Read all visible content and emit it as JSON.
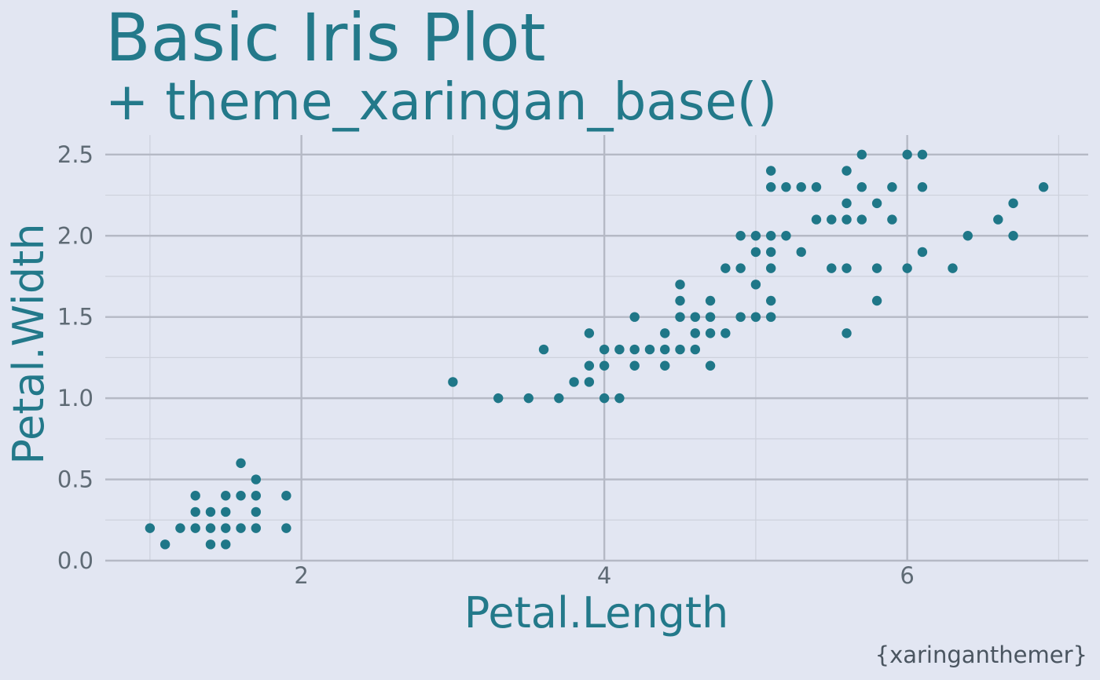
{
  "chart_data": {
    "type": "scatter",
    "title": "Basic Iris Plot",
    "subtitle": "+ theme_xaringan_base()",
    "caption": "{xaringanthemer}",
    "xlabel": "Petal.Length",
    "ylabel": "Petal.Width",
    "xlim": [
      0.705,
      7.195
    ],
    "ylim": [
      0.0,
      2.62
    ],
    "x_ticks": [
      2,
      4,
      6
    ],
    "x_tick_labels": [
      "2",
      "4",
      "6"
    ],
    "x_minor_ticks": [
      1,
      3,
      5,
      7
    ],
    "y_ticks": [
      0.0,
      0.5,
      1.0,
      1.5,
      2.0,
      2.5
    ],
    "y_tick_labels": [
      "0.0",
      "0.5",
      "1.0",
      "1.5",
      "2.0",
      "2.5"
    ],
    "y_minor_ticks": [
      0.25,
      0.75,
      1.25,
      1.75,
      2.25
    ],
    "grid": true,
    "point_color": "#1F7788",
    "text_color": "#23798A",
    "background": "#E2E6F2",
    "points": [
      [
        1.0,
        0.2
      ],
      [
        1.1,
        0.1
      ],
      [
        1.2,
        0.2
      ],
      [
        1.3,
        0.2
      ],
      [
        1.3,
        0.3
      ],
      [
        1.3,
        0.4
      ],
      [
        1.4,
        0.1
      ],
      [
        1.4,
        0.2
      ],
      [
        1.4,
        0.3
      ],
      [
        1.5,
        0.1
      ],
      [
        1.5,
        0.2
      ],
      [
        1.5,
        0.3
      ],
      [
        1.5,
        0.4
      ],
      [
        1.6,
        0.2
      ],
      [
        1.6,
        0.4
      ],
      [
        1.6,
        0.6
      ],
      [
        1.7,
        0.2
      ],
      [
        1.7,
        0.3
      ],
      [
        1.7,
        0.4
      ],
      [
        1.7,
        0.5
      ],
      [
        1.9,
        0.2
      ],
      [
        1.9,
        0.4
      ],
      [
        3.0,
        1.1
      ],
      [
        3.3,
        1.0
      ],
      [
        3.5,
        1.0
      ],
      [
        3.6,
        1.3
      ],
      [
        3.7,
        1.0
      ],
      [
        3.8,
        1.1
      ],
      [
        3.9,
        1.1
      ],
      [
        3.9,
        1.2
      ],
      [
        3.9,
        1.4
      ],
      [
        4.0,
        1.0
      ],
      [
        4.0,
        1.2
      ],
      [
        4.0,
        1.3
      ],
      [
        4.1,
        1.0
      ],
      [
        4.1,
        1.3
      ],
      [
        4.2,
        1.2
      ],
      [
        4.2,
        1.3
      ],
      [
        4.2,
        1.5
      ],
      [
        4.3,
        1.3
      ],
      [
        4.4,
        1.2
      ],
      [
        4.4,
        1.3
      ],
      [
        4.4,
        1.4
      ],
      [
        4.5,
        1.3
      ],
      [
        4.5,
        1.5
      ],
      [
        4.5,
        1.6
      ],
      [
        4.5,
        1.7
      ],
      [
        4.6,
        1.3
      ],
      [
        4.6,
        1.4
      ],
      [
        4.6,
        1.5
      ],
      [
        4.7,
        1.2
      ],
      [
        4.7,
        1.4
      ],
      [
        4.7,
        1.5
      ],
      [
        4.7,
        1.6
      ],
      [
        4.8,
        1.4
      ],
      [
        4.8,
        1.8
      ],
      [
        4.9,
        1.5
      ],
      [
        4.9,
        1.8
      ],
      [
        4.9,
        2.0
      ],
      [
        5.0,
        1.5
      ],
      [
        5.0,
        1.7
      ],
      [
        5.0,
        1.9
      ],
      [
        5.0,
        2.0
      ],
      [
        5.1,
        1.5
      ],
      [
        5.1,
        1.6
      ],
      [
        5.1,
        1.8
      ],
      [
        5.1,
        1.9
      ],
      [
        5.1,
        2.0
      ],
      [
        5.1,
        2.3
      ],
      [
        5.1,
        2.4
      ],
      [
        5.2,
        2.0
      ],
      [
        5.2,
        2.3
      ],
      [
        5.3,
        1.9
      ],
      [
        5.3,
        2.3
      ],
      [
        5.4,
        2.1
      ],
      [
        5.4,
        2.3
      ],
      [
        5.5,
        1.8
      ],
      [
        5.5,
        2.1
      ],
      [
        5.6,
        1.4
      ],
      [
        5.6,
        1.8
      ],
      [
        5.6,
        2.1
      ],
      [
        5.6,
        2.2
      ],
      [
        5.6,
        2.4
      ],
      [
        5.7,
        2.1
      ],
      [
        5.7,
        2.3
      ],
      [
        5.7,
        2.5
      ],
      [
        5.8,
        1.6
      ],
      [
        5.8,
        1.8
      ],
      [
        5.8,
        2.2
      ],
      [
        5.9,
        2.1
      ],
      [
        5.9,
        2.3
      ],
      [
        6.0,
        1.8
      ],
      [
        6.0,
        2.5
      ],
      [
        6.1,
        1.9
      ],
      [
        6.1,
        2.3
      ],
      [
        6.1,
        2.5
      ],
      [
        6.3,
        1.8
      ],
      [
        6.4,
        2.0
      ],
      [
        6.6,
        2.1
      ],
      [
        6.7,
        2.0
      ],
      [
        6.7,
        2.2
      ],
      [
        6.9,
        2.3
      ]
    ]
  }
}
